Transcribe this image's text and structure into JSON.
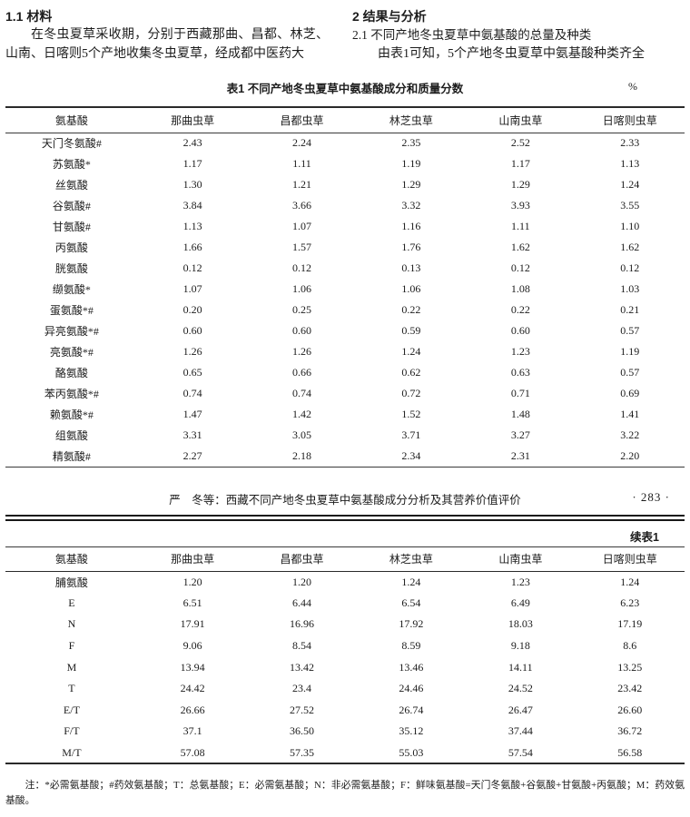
{
  "left_column": {
    "heading": "1.1  材料",
    "body": "在冬虫夏草采收期，分别于西藏那曲、昌都、林芝、山南、日喀则5个产地收集冬虫夏草，经成都中医药大"
  },
  "right_column": {
    "heading": "2  结果与分析",
    "subheading": "2.1  不同产地冬虫夏草中氨基酸的总量及种类",
    "body": "由表1可知，5个产地冬虫夏草中氨基酸种类齐全"
  },
  "table1": {
    "title": "表1  不同产地冬虫夏草中氨基酸成分和质量分数",
    "unit": "%",
    "headers": [
      "氨基酸",
      "那曲虫草",
      "昌都虫草",
      "林芝虫草",
      "山南虫草",
      "日喀则虫草"
    ],
    "rows": [
      [
        "天门冬氨酸#",
        "2.43",
        "2.24",
        "2.35",
        "2.52",
        "2.33"
      ],
      [
        "苏氨酸*",
        "1.17",
        "1.11",
        "1.19",
        "1.17",
        "1.13"
      ],
      [
        "丝氨酸",
        "1.30",
        "1.21",
        "1.29",
        "1.29",
        "1.24"
      ],
      [
        "谷氨酸#",
        "3.84",
        "3.66",
        "3.32",
        "3.93",
        "3.55"
      ],
      [
        "甘氨酸#",
        "1.13",
        "1.07",
        "1.16",
        "1.11",
        "1.10"
      ],
      [
        "丙氨酸",
        "1.66",
        "1.57",
        "1.76",
        "1.62",
        "1.62"
      ],
      [
        "胱氨酸",
        "0.12",
        "0.12",
        "0.13",
        "0.12",
        "0.12"
      ],
      [
        "缬氨酸*",
        "1.07",
        "1.06",
        "1.06",
        "1.08",
        "1.03"
      ],
      [
        "蛋氨酸*#",
        "0.20",
        "0.25",
        "0.22",
        "0.22",
        "0.21"
      ],
      [
        "异亮氨酸*#",
        "0.60",
        "0.60",
        "0.59",
        "0.60",
        "0.57"
      ],
      [
        "亮氨酸*#",
        "1.26",
        "1.26",
        "1.24",
        "1.23",
        "1.19"
      ],
      [
        "酪氨酸",
        "0.65",
        "0.66",
        "0.62",
        "0.63",
        "0.57"
      ],
      [
        "苯丙氨酸*#",
        "0.74",
        "0.74",
        "0.72",
        "0.71",
        "0.69"
      ],
      [
        "赖氨酸*#",
        "1.47",
        "1.42",
        "1.52",
        "1.48",
        "1.41"
      ],
      [
        "组氨酸",
        "3.31",
        "3.05",
        "3.71",
        "3.27",
        "3.22"
      ],
      [
        "精氨酸#",
        "2.27",
        "2.18",
        "2.34",
        "2.31",
        "2.20"
      ]
    ]
  },
  "running_head": {
    "text": "严　冬等：西藏不同产地冬虫夏草中氨基酸成分分析及其营养价值评价",
    "page_no": "· 283 ·"
  },
  "table1_cont": {
    "label": "续表1",
    "headers": [
      "氨基酸",
      "那曲虫草",
      "昌都虫草",
      "林芝虫草",
      "山南虫草",
      "日喀则虫草"
    ],
    "rows": [
      [
        "脯氨酸",
        "1.20",
        "1.20",
        "1.24",
        "1.23",
        "1.24"
      ],
      [
        "E",
        "6.51",
        "6.44",
        "6.54",
        "6.49",
        "6.23"
      ],
      [
        "N",
        "17.91",
        "16.96",
        "17.92",
        "18.03",
        "17.19"
      ],
      [
        "F",
        "9.06",
        "8.54",
        "8.59",
        "9.18",
        "8.6"
      ],
      [
        "M",
        "13.94",
        "13.42",
        "13.46",
        "14.11",
        "13.25"
      ],
      [
        "T",
        "24.42",
        "23.4",
        "24.46",
        "24.52",
        "23.42"
      ],
      [
        "E/T",
        "26.66",
        "27.52",
        "26.74",
        "26.47",
        "26.60"
      ],
      [
        "F/T",
        "37.1",
        "36.50",
        "35.12",
        "37.44",
        "36.72"
      ],
      [
        "M/T",
        "57.08",
        "57.35",
        "55.03",
        "57.54",
        "56.58"
      ]
    ]
  },
  "note": "注：*必需氨基酸；#药效氨基酸；T：总氨基酸；E：必需氨基酸；N：非必需氨基酸；F：鲜味氨基酸=天门冬氨酸+谷氨酸+甘氨酸+丙氨酸；M：药效氨基酸。"
}
